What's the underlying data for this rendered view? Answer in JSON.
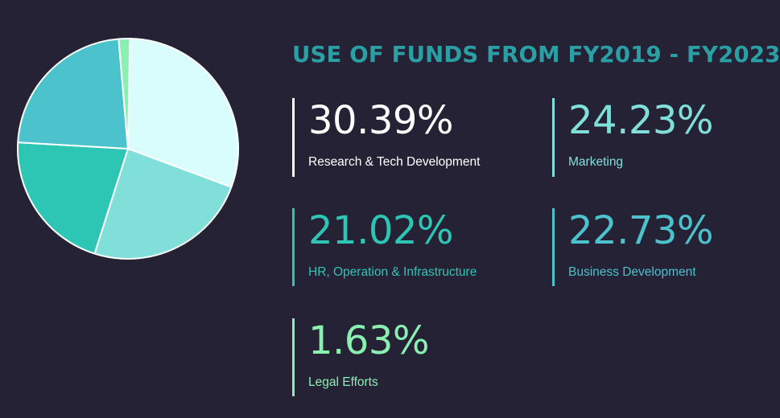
{
  "colors": {
    "background": "#252236",
    "title": "#2a9fa4",
    "slice_outline": "#ffffff"
  },
  "chart_data": {
    "type": "pie",
    "title": "USE OF FUNDS FROM FY2019 - FY2023",
    "unit": "%",
    "slices": [
      {
        "label": "Research & Tech Development",
        "value": 30.39,
        "display": "30.39%",
        "color": "#d9fdfc",
        "bar_color": "#ffffff",
        "value_color": "#ffffff",
        "label_color": "#ffffff"
      },
      {
        "label": "Marketing",
        "value": 24.23,
        "display": "24.23%",
        "color": "#80e0d9",
        "bar_color": "#80e0d9",
        "value_color": "#80e0d9",
        "label_color": "#80e0d9"
      },
      {
        "label": "HR, Operation & Infrastructure",
        "value": 21.02,
        "display": "21.02%",
        "color": "#2dc5b4",
        "bar_color": "#2dc5b4",
        "value_color": "#2dc5b4",
        "label_color": "#2dc5b4"
      },
      {
        "label": "Business Development",
        "value": 22.73,
        "display": "22.73%",
        "color": "#4bc2cc",
        "bar_color": "#4bc2cc",
        "value_color": "#4bc2cc",
        "label_color": "#4bc2cc"
      },
      {
        "label": "Legal Efforts",
        "value": 1.63,
        "display": "1.63%",
        "color": "#8af0b2",
        "bar_color": "#8af0b2",
        "value_color": "#8af0b2",
        "label_color": "#8af0b2"
      }
    ]
  }
}
